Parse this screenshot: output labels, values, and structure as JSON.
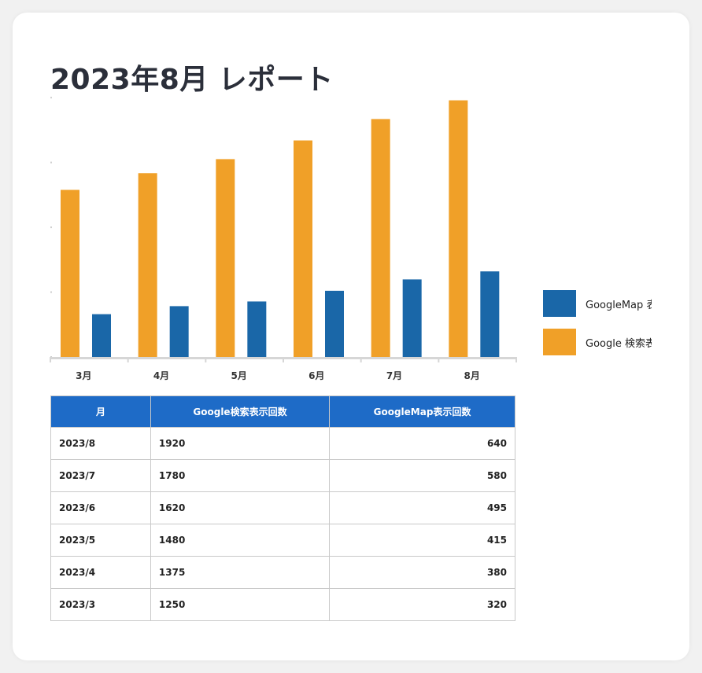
{
  "title": "2023年8月 レポート",
  "colors": {
    "search": "#f0a028",
    "map": "#1a67a8",
    "header_bg": "#1e6bc7",
    "axis": "#d6d6d6"
  },
  "chart_data": {
    "type": "bar",
    "categories": [
      "3月",
      "4月",
      "5月",
      "6月",
      "7月",
      "8月"
    ],
    "series": [
      {
        "name": "Google 検索表示回数",
        "color": "#f0a028",
        "values": [
          1250,
          1375,
          1480,
          1620,
          1780,
          1920
        ]
      },
      {
        "name": "GoogleMap 表示回数",
        "color": "#1a67a8",
        "values": [
          320,
          380,
          415,
          495,
          580,
          640
        ]
      }
    ],
    "ylim": [
      0,
      2000
    ],
    "legend_position": "right"
  },
  "legend": [
    {
      "label": "GoogleMap 表示回数",
      "color": "#1a67a8"
    },
    {
      "label": "Google 検索表示回数",
      "color": "#f0a028"
    }
  ],
  "table": {
    "headers": [
      "月",
      "Google検索表示回数",
      "GoogleMap表示回数"
    ],
    "rows": [
      [
        "2023/8",
        "1920",
        "640"
      ],
      [
        "2023/7",
        "1780",
        "580"
      ],
      [
        "2023/6",
        "1620",
        "495"
      ],
      [
        "2023/5",
        "1480",
        "415"
      ],
      [
        "2023/4",
        "1375",
        "380"
      ],
      [
        "2023/3",
        "1250",
        "320"
      ]
    ]
  }
}
